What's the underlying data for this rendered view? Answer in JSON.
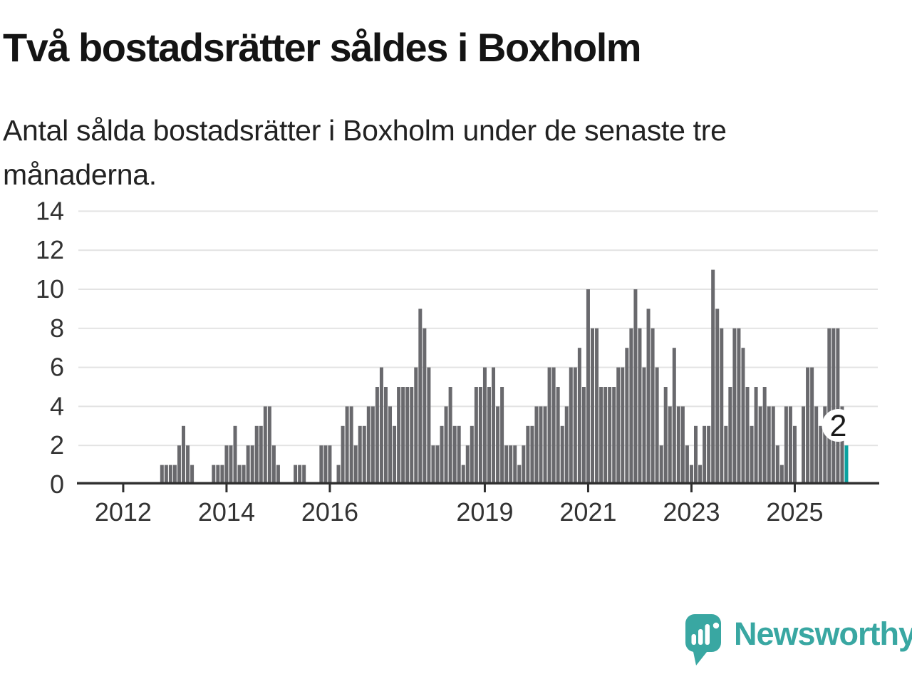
{
  "header": {
    "title": "Två bostadsrätter såldes i Boxholm",
    "subtitle_lines": [
      "Antal sålda bostadsrätter i Boxholm under de senaste tre",
      "månaderna."
    ]
  },
  "chart_data": {
    "type": "bar",
    "title": "Två bostadsrätter såldes i Boxholm",
    "subtitle": "Antal sålda bostadsrätter i Boxholm under de senaste tre månaderna.",
    "xlabel": "",
    "ylabel": "",
    "ylim": [
      0,
      14
    ],
    "y_ticks": [
      0,
      2,
      4,
      6,
      8,
      10,
      12,
      14
    ],
    "x_tick_labels": [
      "2012",
      "2014",
      "2016",
      "2019",
      "2021",
      "2023",
      "2025"
    ],
    "grid": true,
    "legend_position": "none",
    "frequency": "monthly",
    "start_month": "2012-10",
    "values": [
      1,
      1,
      1,
      1,
      2,
      3,
      2,
      1,
      0,
      0,
      0,
      0,
      1,
      1,
      1,
      2,
      2,
      3,
      1,
      1,
      2,
      2,
      3,
      3,
      4,
      4,
      2,
      1,
      0,
      0,
      0,
      1,
      1,
      1,
      0,
      0,
      0,
      2,
      2,
      2,
      0,
      1,
      3,
      4,
      4,
      2,
      3,
      3,
      4,
      4,
      5,
      6,
      5,
      4,
      3,
      5,
      5,
      5,
      5,
      6,
      9,
      8,
      6,
      2,
      2,
      3,
      4,
      5,
      3,
      3,
      1,
      2,
      3,
      5,
      5,
      6,
      5,
      6,
      4,
      5,
      2,
      2,
      2,
      1,
      2,
      3,
      3,
      4,
      4,
      4,
      6,
      6,
      5,
      3,
      4,
      6,
      6,
      7,
      5,
      10,
      8,
      8,
      5,
      5,
      5,
      5,
      6,
      6,
      7,
      8,
      10,
      8,
      6,
      9,
      8,
      6,
      2,
      5,
      4,
      7,
      4,
      4,
      2,
      1,
      3,
      1,
      3,
      3,
      11,
      9,
      8,
      3,
      5,
      8,
      8,
      7,
      5,
      3,
      5,
      4,
      5,
      4,
      4,
      2,
      1,
      4,
      4,
      3,
      0,
      4,
      6,
      6,
      4,
      3,
      4,
      8,
      8,
      8,
      4,
      2
    ],
    "highlight_last_bar": true,
    "last_value_label": "2",
    "colors": {
      "bar": "#69696d",
      "highlight": "#0aa2a0",
      "grid": "#e3e3e3",
      "axis": "#2f2f2f",
      "tick_text": "#333333",
      "label_text": "#1a1a1a"
    }
  },
  "footer": {
    "brand": "Newsworthy",
    "brand_color": "#39a7a2"
  }
}
